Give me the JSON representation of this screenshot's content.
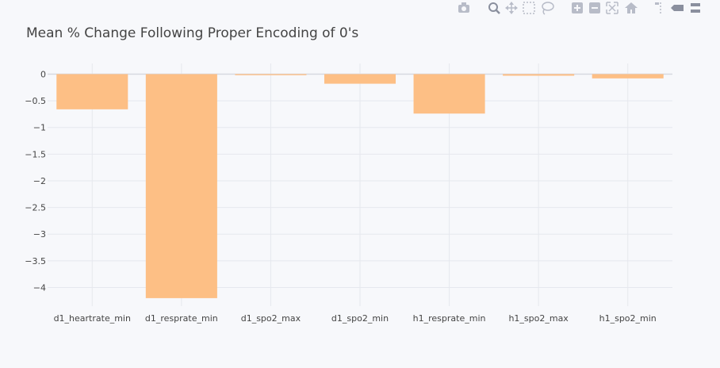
{
  "modebar": {
    "buttons": [
      {
        "name": "camera-icon",
        "label": "Download plot as a png"
      },
      {
        "name": "zoom-icon",
        "label": "Zoom"
      },
      {
        "name": "pan-icon",
        "label": "Pan"
      },
      {
        "name": "box-select-icon",
        "label": "Box Select"
      },
      {
        "name": "lasso-select-icon",
        "label": "Lasso Select"
      },
      {
        "name": "zoom-in-icon",
        "label": "Zoom in"
      },
      {
        "name": "zoom-out-icon",
        "label": "Zoom out"
      },
      {
        "name": "autoscale-icon",
        "label": "Autoscale"
      },
      {
        "name": "home-icon",
        "label": "Reset axes"
      },
      {
        "name": "spike-lines-icon",
        "label": "Toggle Spike Lines"
      },
      {
        "name": "hover-closest-icon",
        "label": "Show closest data on hover"
      },
      {
        "name": "hover-compare-icon",
        "label": "Compare data on hover"
      }
    ]
  },
  "chart_data": {
    "type": "bar",
    "title": "Mean % Change Following Proper Encoding of 0's",
    "xlabel": "",
    "ylabel": "",
    "categories": [
      "d1_heartrate_min",
      "d1_resprate_min",
      "d1_spo2_max",
      "d1_spo2_min",
      "h1_resprate_min",
      "h1_spo2_max",
      "h1_spo2_min"
    ],
    "values": [
      -0.66,
      -4.2,
      -0.02,
      -0.18,
      -0.74,
      -0.03,
      -0.08
    ],
    "yticks": [
      0,
      -0.5,
      -1,
      -1.5,
      -2,
      -2.5,
      -3,
      -3.5,
      -4
    ],
    "ytick_labels": [
      "0",
      "−0.5",
      "−1",
      "−1.5",
      "−2",
      "−2.5",
      "−3",
      "−3.5",
      "−4"
    ],
    "ylim": [
      -4.35,
      0.2
    ],
    "grid": true,
    "legend": "none",
    "colors": {
      "bar": "#fdbf85",
      "grid": "#e6e8ee",
      "zeroline": "#d7d9e0",
      "text": "#444444",
      "background": "#f7f8fb"
    }
  }
}
